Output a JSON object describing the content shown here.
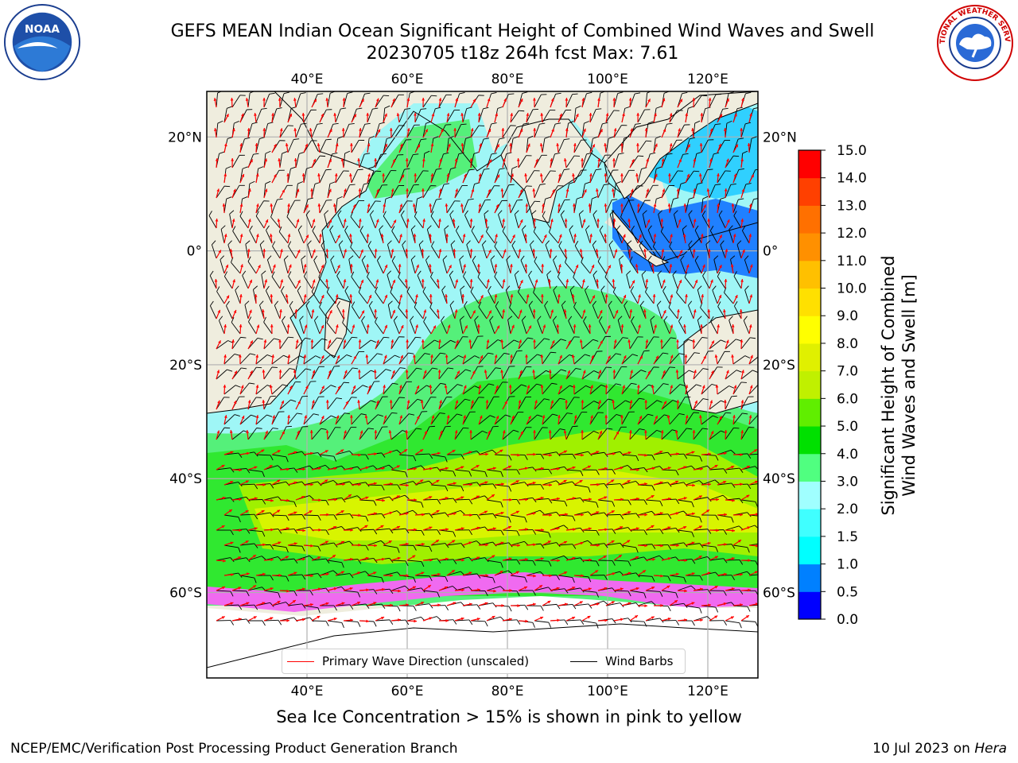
{
  "title": {
    "line1": "GEFS MEAN Indian Ocean Significant Height of Combined Wind Waves and Swell",
    "line2": "20230705 t18z 264h fcst   Max: 7.61"
  },
  "logos": {
    "left": {
      "name": "noaa-logo",
      "text": "NOAA"
    },
    "right": {
      "name": "nws-logo",
      "text": "NATIONAL WEATHER SERVICE"
    }
  },
  "map": {
    "lon_range": [
      20,
      130
    ],
    "lat_range": [
      -75,
      28
    ],
    "lon_ticks": [
      {
        "value": 40,
        "label": "40°E"
      },
      {
        "value": 60,
        "label": "60°E"
      },
      {
        "value": 80,
        "label": "80°E"
      },
      {
        "value": 100,
        "label": "100°E"
      },
      {
        "value": 120,
        "label": "120°E"
      }
    ],
    "lat_ticks": [
      {
        "value": 20,
        "label": "20°N"
      },
      {
        "value": 0,
        "label": "0°"
      },
      {
        "value": -20,
        "label": "20°S"
      },
      {
        "value": -40,
        "label": "40°S"
      },
      {
        "value": -60,
        "label": "60°S"
      }
    ],
    "grid": true,
    "land_color": "#efedde",
    "arrow_color": "#ff0000",
    "barb_color": "#000000"
  },
  "colorbar": {
    "label_line1": "Significant Height of Combined",
    "label_line2": "Wind Waves and Swell [m]",
    "tick_labels": [
      "0.0",
      "0.5",
      "1.0",
      "1.5",
      "2.0",
      "3.0",
      "4.0",
      "5.0",
      "6.0",
      "7.0",
      "8.0",
      "9.0",
      "10.0",
      "11.0",
      "12.0",
      "13.0",
      "14.0",
      "15.0"
    ],
    "colors": [
      "#0000ff",
      "#0080ff",
      "#00ffff",
      "#40ffff",
      "#a0ffff",
      "#50ff80",
      "#00e000",
      "#60ee00",
      "#c0f000",
      "#e0f000",
      "#ffff00",
      "#ffe000",
      "#ffc000",
      "#ff9000",
      "#ff7000",
      "#ff4000",
      "#ff0000"
    ]
  },
  "legend": {
    "wave_label": "Primary Wave Direction (unscaled)",
    "barb_label": "Wind Barbs"
  },
  "caption": "Sea Ice Concentration > 15% is shown in pink to yellow",
  "footer": {
    "left": "NCEP/EMC/Verification Post Processing Product Generation Branch",
    "right_prefix": "10 Jul 2023 on ",
    "right_host": "Hera"
  }
}
